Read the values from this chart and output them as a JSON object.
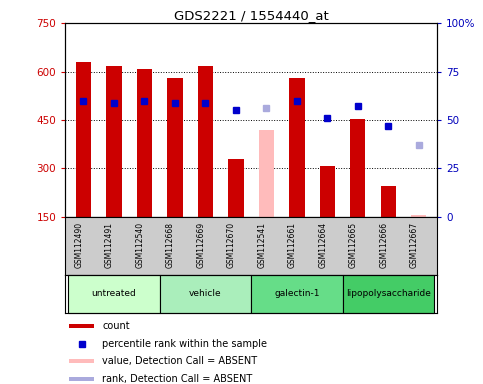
{
  "title": "GDS2221 / 1554440_at",
  "samples": [
    "GSM112490",
    "GSM112491",
    "GSM112540",
    "GSM112668",
    "GSM112669",
    "GSM112670",
    "GSM112541",
    "GSM112661",
    "GSM112664",
    "GSM112665",
    "GSM112666",
    "GSM112667"
  ],
  "bar_values": [
    630,
    618,
    608,
    580,
    618,
    330,
    null,
    580,
    308,
    452,
    245,
    null
  ],
  "bar_absent_values": [
    null,
    null,
    null,
    null,
    null,
    null,
    420,
    null,
    null,
    null,
    null,
    155
  ],
  "rank_values": [
    60,
    59,
    60,
    59,
    59,
    55,
    null,
    60,
    51,
    57,
    47,
    null
  ],
  "rank_absent_values": [
    null,
    null,
    null,
    null,
    null,
    null,
    56,
    null,
    null,
    null,
    null,
    37
  ],
  "bar_color": "#cc0000",
  "bar_absent_color": "#ffbbbb",
  "rank_color": "#0000cc",
  "rank_absent_color": "#aaaadd",
  "groups": [
    {
      "label": "untreated",
      "start": 0,
      "end": 3,
      "color": "#ccffcc"
    },
    {
      "label": "vehicle",
      "start": 3,
      "end": 6,
      "color": "#aaeebb"
    },
    {
      "label": "galectin-1",
      "start": 6,
      "end": 9,
      "color": "#66dd88"
    },
    {
      "label": "lipopolysaccharide",
      "start": 9,
      "end": 12,
      "color": "#44cc66"
    }
  ],
  "ylim_left": [
    150,
    750
  ],
  "ylim_right": [
    0,
    100
  ],
  "yticks_left": [
    150,
    300,
    450,
    600,
    750
  ],
  "yticks_right": [
    0,
    25,
    50,
    75,
    100
  ],
  "ytick_labels_left": [
    "150",
    "300",
    "450",
    "600",
    "750"
  ],
  "ytick_labels_right": [
    "0",
    "25",
    "50",
    "75",
    "100%"
  ],
  "ylabel_left_color": "#cc0000",
  "ylabel_right_color": "#0000bb",
  "bar_width": 0.5,
  "rank_marker": "s",
  "rank_marker_size": 5,
  "legend_items": [
    {
      "color": "#cc0000",
      "type": "rect",
      "label": "count"
    },
    {
      "color": "#0000cc",
      "type": "square",
      "label": "percentile rank within the sample"
    },
    {
      "color": "#ffbbbb",
      "type": "rect",
      "label": "value, Detection Call = ABSENT"
    },
    {
      "color": "#aaaadd",
      "type": "rect",
      "label": "rank, Detection Call = ABSENT"
    }
  ]
}
